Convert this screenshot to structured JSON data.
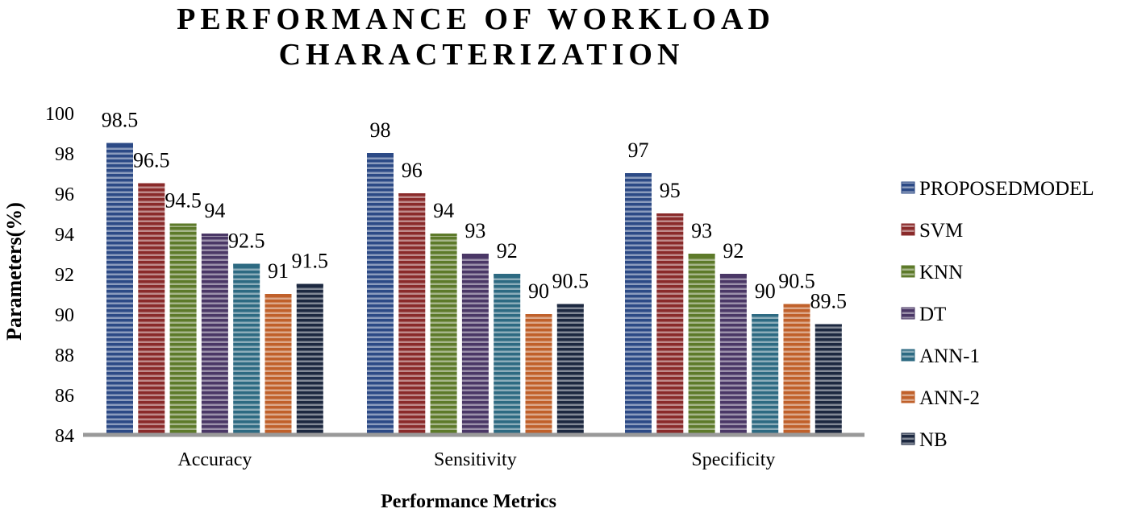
{
  "chart_data": {
    "type": "bar",
    "title_lines": [
      "PERFORMANCE OF WORKLOAD",
      "CHARACTERIZATION"
    ],
    "xlabel": "Performance Metrics",
    "ylabel": "Parameters(%)",
    "categories": [
      "Accuracy",
      "Sensitivity",
      "Specificity"
    ],
    "ylim": [
      84,
      100
    ],
    "yticks": [
      84,
      86,
      88,
      90,
      92,
      94,
      96,
      98,
      100
    ],
    "legend_position": "right",
    "grid": false,
    "series": [
      {
        "name": "PROPOSEDMODEL",
        "values": [
          98.5,
          98,
          97
        ],
        "color": "#2c4a86"
      },
      {
        "name": "SVM",
        "values": [
          96.5,
          96,
          95
        ],
        "color": "#8a2a2a"
      },
      {
        "name": "KNN",
        "values": [
          94.5,
          94,
          93
        ],
        "color": "#5d7a2a"
      },
      {
        "name": "DT",
        "values": [
          94,
          93,
          92
        ],
        "color": "#4a3766"
      },
      {
        "name": "ANN-1",
        "values": [
          92.5,
          92,
          90
        ],
        "color": "#2d6a82"
      },
      {
        "name": "ANN-2",
        "values": [
          91,
          90,
          90.5
        ],
        "color": "#c0602a"
      },
      {
        "name": "NB",
        "values": [
          91.5,
          90.5,
          89.5
        ],
        "color": "#1c2840"
      }
    ]
  }
}
